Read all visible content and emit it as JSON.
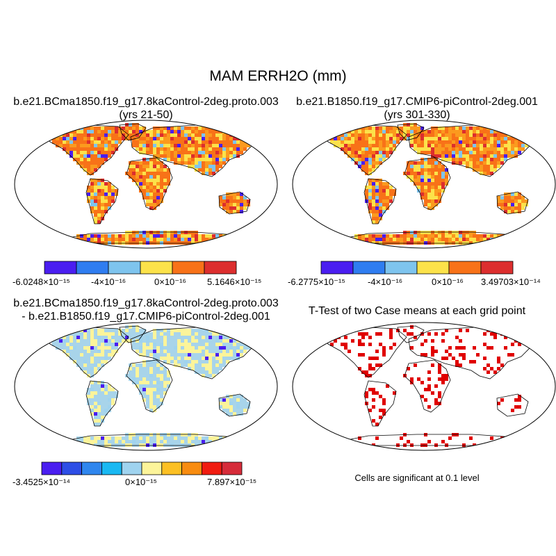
{
  "title": "MAM ERRH2O (mm)",
  "panels": [
    {
      "title_line1": "b.e21.BCma1850.f19_g17.8kaControl-2deg.proto.003",
      "title_line2": "(yrs 21-50)",
      "colorbar": {
        "colors": [
          "#4a1ef0",
          "#2f7df0",
          "#7ec4ee",
          "#fce24a",
          "#f87218",
          "#dc2e2e"
        ],
        "labels": [
          "-6.0248×10⁻¹⁵",
          "-4×10⁻¹⁶",
          "0×10⁻¹⁶",
          "5.1646×10⁻¹⁵"
        ]
      }
    },
    {
      "title_line1": "b.e21.B1850.f19_g17.CMIP6-piControl-2deg.001",
      "title_line2": "(yrs 301-330)",
      "colorbar": {
        "colors": [
          "#4a1ef0",
          "#2f7df0",
          "#7ec4ee",
          "#fce24a",
          "#f87218",
          "#dc2e2e"
        ],
        "labels": [
          "-6.2775×10⁻¹⁵",
          "-4×10⁻¹⁶",
          "0×10⁻¹⁶",
          "3.49703×10⁻¹⁴"
        ]
      }
    },
    {
      "title_line1": "b.e21.BCma1850.f19_g17.8kaControl-2deg.proto.003",
      "title_line2": "- b.e21.B1850.f19_g17.CMIP6-piControl-2deg.001",
      "colorbar": {
        "colors": [
          "#4a1ef0",
          "#2d4ee6",
          "#2f86ee",
          "#19b8f2",
          "#9fd3ef",
          "#fcf49a",
          "#fcc024",
          "#f88c10",
          "#f01c10",
          "#d62c3a"
        ],
        "labels": [
          "-3.4525×10⁻¹⁴",
          "0×10⁻¹⁵",
          "7.897×10⁻¹⁵"
        ]
      }
    },
    {
      "title_line1": "T-Test of two Case means at each grid point",
      "title_line2": "",
      "note": "Cells are significant at 0.1 level"
    }
  ],
  "map": {
    "ocean_color": "#ffffff",
    "coastline_color": "#000000",
    "panel_fill_colors": [
      "#fb9a1e",
      "#fb9a1e",
      "#a8d4ea",
      "#ffffff"
    ],
    "significance_color": "#e00000"
  }
}
